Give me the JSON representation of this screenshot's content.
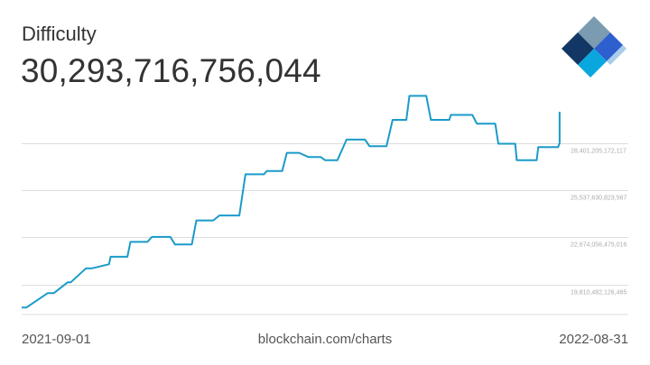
{
  "header": {
    "title": "Difficulty",
    "current_value": "30,293,716,756,044"
  },
  "logo": {
    "icon": "blockchain-logo-icon",
    "colors": [
      "#7b9bb0",
      "#123765",
      "#2e5fcf",
      "#0aa7df",
      "#a9cdea"
    ]
  },
  "footer": {
    "start_date": "2021-09-01",
    "source": "blockchain.com/charts",
    "end_date": "2022-08-31"
  },
  "colors": {
    "line": "#1a9bc9",
    "grid": "#dddddd",
    "tick_text": "#aaaaaa",
    "text": "#333333"
  },
  "chart_data": {
    "type": "line",
    "title": "Difficulty",
    "xlabel": "",
    "ylabel": "",
    "xlim": [
      "2021-09-01",
      "2022-08-31"
    ],
    "ylim": [
      18000000000000,
      31600000000000
    ],
    "grid": true,
    "y_ticks": [
      {
        "value": 19810482126465,
        "label": "19,810,482,126,465"
      },
      {
        "value": 22674056475016,
        "label": "22,674,056,475,016"
      },
      {
        "value": 25537630823567,
        "label": "25,537,630,823,567"
      },
      {
        "value": 28401205172117,
        "label": "28,401,205,172,117"
      }
    ],
    "series": [
      {
        "x": [
          "2021-09-01",
          "2021-09-04",
          "2021-09-18",
          "2021-09-22",
          "2021-10-01",
          "2021-10-03",
          "2021-10-13",
          "2021-10-17",
          "2021-10-28",
          "2021-10-29",
          "2021-11-09",
          "2021-11-11",
          "2021-11-22",
          "2021-11-25",
          "2021-12-07",
          "2021-12-10",
          "2021-12-21",
          "2021-12-24",
          "2022-01-04",
          "2022-01-08",
          "2022-01-21",
          "2022-01-25",
          "2022-02-06",
          "2022-02-08",
          "2022-02-18",
          "2022-02-21",
          "2022-03-01",
          "2022-03-07",
          "2022-03-15",
          "2022-03-18",
          "2022-03-26",
          "2022-04-01",
          "2022-04-13",
          "2022-04-16",
          "2022-04-27",
          "2022-05-01",
          "2022-05-10",
          "2022-05-12",
          "2022-05-23",
          "2022-05-26",
          "2022-06-07",
          "2022-06-08",
          "2022-06-22",
          "2022-06-25",
          "2022-07-07",
          "2022-07-09",
          "2022-07-20",
          "2022-07-21",
          "2022-08-03",
          "2022-08-04",
          "2022-08-17",
          "2022-08-18",
          "2022-08-18"
        ],
        "y": [
          18420000000000,
          18420000000000,
          19300000000000,
          19300000000000,
          19950000000000,
          19950000000000,
          20800000000000,
          20800000000000,
          21050000000000,
          21500000000000,
          21500000000000,
          22400000000000,
          22400000000000,
          22700000000000,
          22700000000000,
          22250000000000,
          22250000000000,
          23700000000000,
          23700000000000,
          24000000000000,
          24000000000000,
          26500000000000,
          26500000000000,
          26700000000000,
          26700000000000,
          27800000000000,
          27800000000000,
          27550000000000,
          27550000000000,
          27350000000000,
          27350000000000,
          28600000000000,
          28600000000000,
          28200000000000,
          28200000000000,
          29800000000000,
          29800000000000,
          31250000000000,
          31250000000000,
          29800000000000,
          29800000000000,
          30100000000000,
          30100000000000,
          29570000000000,
          29570000000000,
          28350000000000,
          28350000000000,
          27350000000000,
          27350000000000,
          28150000000000,
          28150000000000,
          28400000000000,
          30290000000000
        ]
      }
    ]
  }
}
